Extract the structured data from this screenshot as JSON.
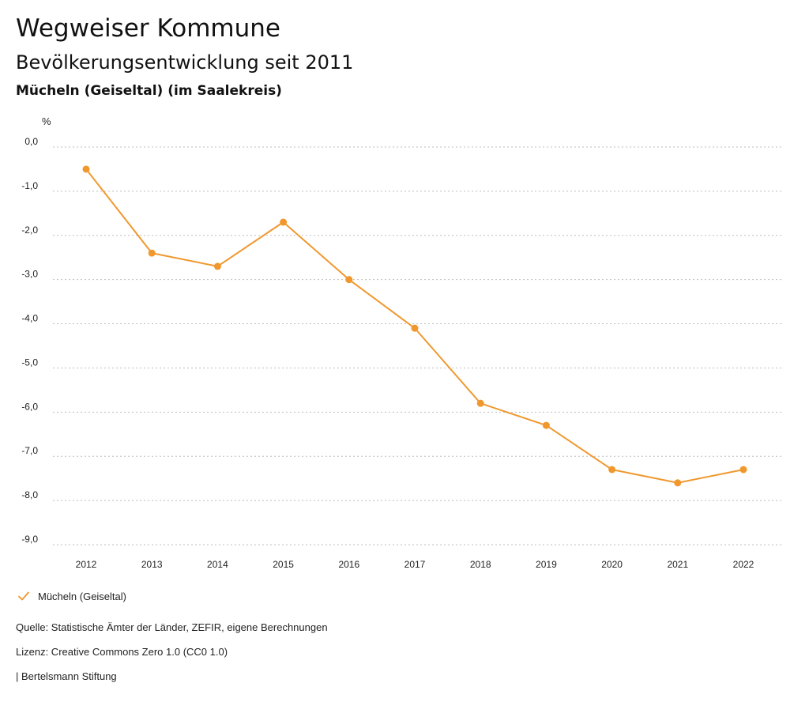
{
  "header": {
    "title": "Wegweiser Kommune",
    "subtitle": "Bevölkerungsentwicklung seit 2011",
    "region": "Mücheln (Geiseltal) (im Saalekreis)"
  },
  "colors": {
    "series": "#f0982e",
    "grid": "#bdbdbd",
    "text": "#222222"
  },
  "chart_data": {
    "type": "line",
    "title": "",
    "xlabel": "",
    "ylabel": "%",
    "categories": [
      "2012",
      "2013",
      "2014",
      "2015",
      "2016",
      "2017",
      "2018",
      "2019",
      "2020",
      "2021",
      "2022"
    ],
    "series": [
      {
        "name": "Mücheln (Geiseltal)",
        "values": [
          -0.5,
          -2.4,
          -2.7,
          -1.7,
          -3.0,
          -4.1,
          -5.8,
          -6.3,
          -7.3,
          -7.6,
          -7.3
        ]
      }
    ],
    "ylim": [
      -9.0,
      0.0
    ],
    "yticks": [
      "0,0",
      "-1,0",
      "-2,0",
      "-3,0",
      "-4,0",
      "-5,0",
      "-6,0",
      "-7,0",
      "-8,0",
      "-9,0"
    ],
    "grid": true,
    "legend_position": "bottom-left"
  },
  "legend": {
    "icon": "check-icon",
    "label": "Mücheln (Geiseltal)"
  },
  "footer": {
    "source": "Quelle: Statistische Ämter der Länder, ZEFIR, eigene Berechnungen",
    "license": "Lizenz: Creative Commons Zero 1.0 (CC0 1.0)",
    "organization": "| Bertelsmann Stiftung"
  }
}
